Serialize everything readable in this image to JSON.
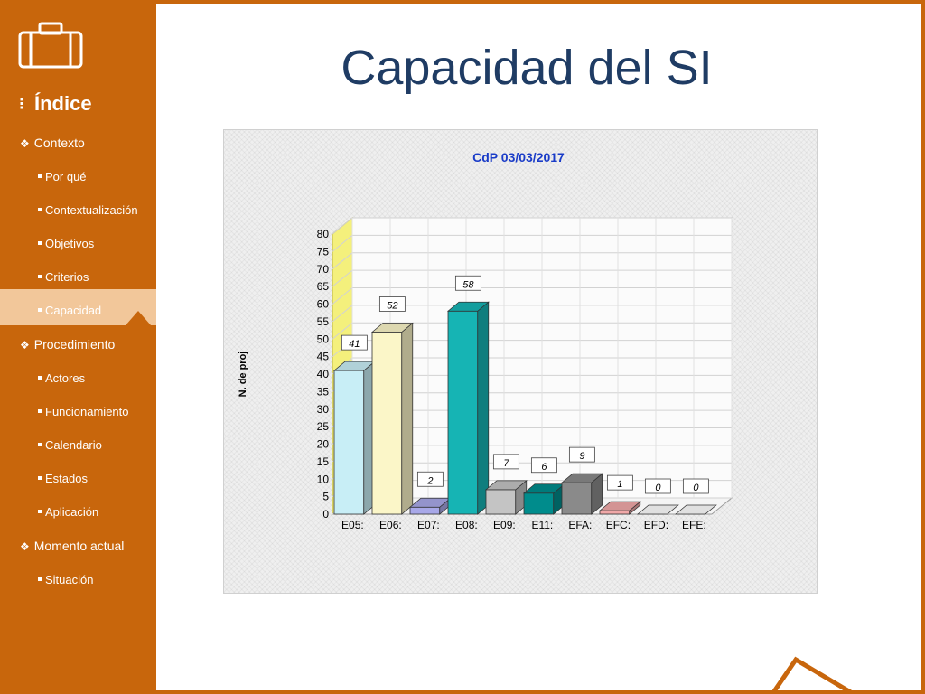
{
  "slide": {
    "title": "Capacidad del SI",
    "accent_color": "#c8660c"
  },
  "sidebar": {
    "logo_icon": "briefcase-icon",
    "heading": "Índice",
    "sections": [
      {
        "label": "Contexto",
        "items": [
          "Por qué",
          "Contextualización",
          "Objetivos",
          "Criterios",
          "Capacidad"
        ]
      },
      {
        "label": "Procedimiento",
        "items": [
          "Actores",
          "Funcionamiento",
          "Calendario",
          "Estados",
          "Aplicación"
        ]
      },
      {
        "label": "Momento actual",
        "items": [
          "Situación"
        ]
      }
    ],
    "active_item": "Capacidad"
  },
  "chart_data": {
    "type": "bar",
    "title": "CdP 03/03/2017",
    "ylabel": "N. de proj",
    "xlabel": "",
    "categories": [
      "E05:",
      "E06:",
      "E07:",
      "E08:",
      "E09:",
      "E11:",
      "EFA:",
      "EFC:",
      "EFD:",
      "EFE:"
    ],
    "values": [
      41,
      52,
      2,
      58,
      7,
      6,
      9,
      1,
      0,
      0
    ],
    "ylim": [
      0,
      80
    ],
    "yticks": [
      0,
      5,
      10,
      15,
      20,
      25,
      30,
      35,
      40,
      45,
      50,
      55,
      60,
      65,
      70,
      75,
      80
    ],
    "grid": true,
    "style": "3d",
    "colors": [
      "#c8eef6",
      "#fbf6c8",
      "#a8a8e8",
      "#16b4b4",
      "#c4c4c4",
      "#008c8c",
      "#8a8a8a",
      "#f0a8a8",
      "#ffffff",
      "#ffffff"
    ]
  }
}
